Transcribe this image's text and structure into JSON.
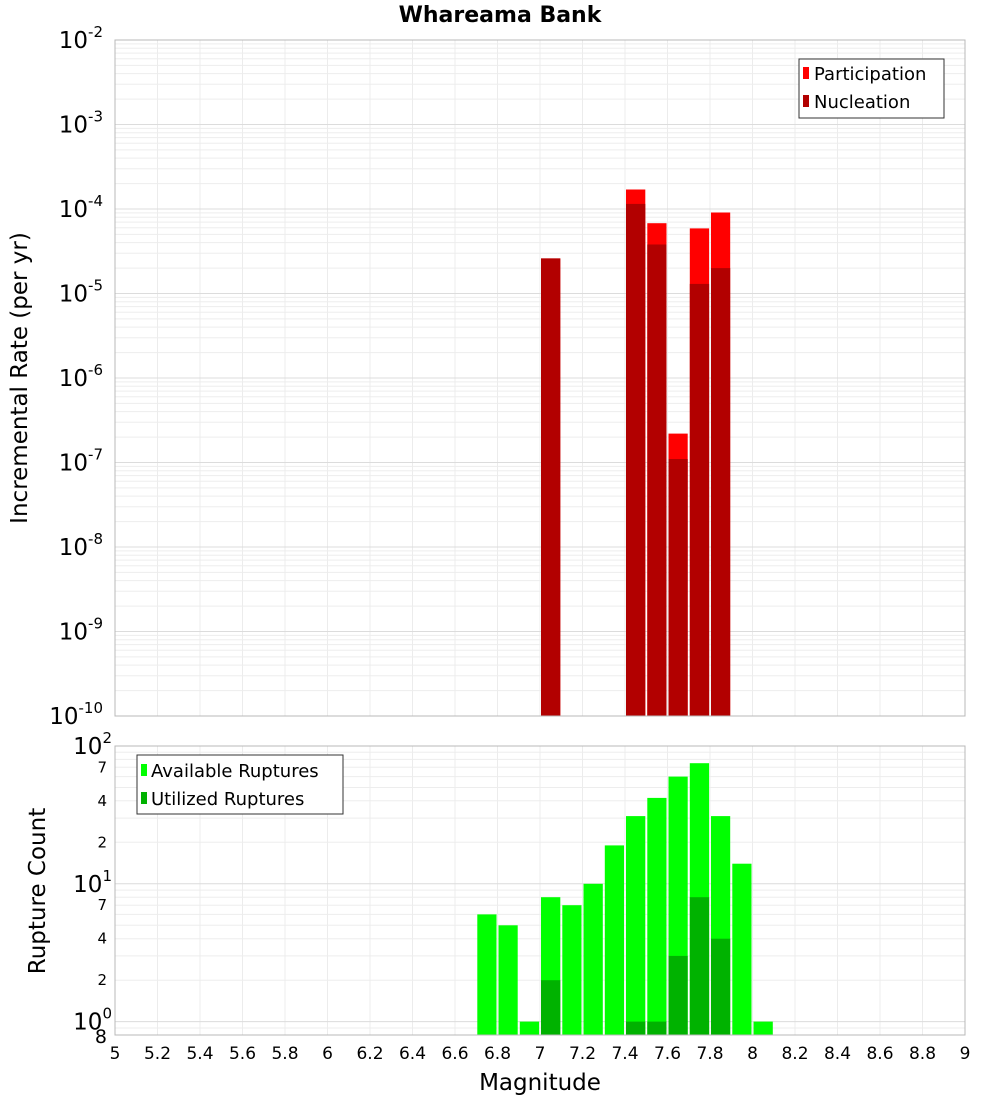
{
  "chart_data": {
    "title": "Whareama Bank",
    "xlabel": "Magnitude",
    "xlim": [
      5,
      9
    ],
    "x_ticks": [
      "5",
      "5.2",
      "5.4",
      "5.6",
      "5.8",
      "6",
      "6.2",
      "6.4",
      "6.6",
      "6.8",
      "7",
      "7.2",
      "7.4",
      "7.6",
      "7.8",
      "8",
      "8.2",
      "8.4",
      "8.6",
      "8.8",
      "9"
    ],
    "bin_width": 0.1,
    "top_panel": {
      "type": "bar",
      "scale": "log",
      "ylabel": "Incremental Rate (per yr)",
      "ylim": [
        1e-10,
        0.01
      ],
      "y_tick_labels": [
        {
          "base": "10",
          "exp": "-10"
        },
        {
          "base": "10",
          "exp": "-9"
        },
        {
          "base": "10",
          "exp": "-8"
        },
        {
          "base": "10",
          "exp": "-7"
        },
        {
          "base": "10",
          "exp": "-6"
        },
        {
          "base": "10",
          "exp": "-5"
        },
        {
          "base": "10",
          "exp": "-4"
        },
        {
          "base": "10",
          "exp": "-3"
        },
        {
          "base": "10",
          "exp": "-2"
        }
      ],
      "legend": [
        "Participation",
        "Nucleation"
      ],
      "series": [
        {
          "name": "Participation",
          "color": "#ff0000",
          "x": [
            7.05,
            7.45,
            7.55,
            7.65,
            7.75,
            7.85
          ],
          "values": [
            2.6e-05,
            0.00017,
            6.8e-05,
            2.2e-07,
            5.9e-05,
            9.1e-05
          ]
        },
        {
          "name": "Nucleation",
          "color": "#b20000",
          "x": [
            7.05,
            7.45,
            7.55,
            7.65,
            7.75,
            7.85
          ],
          "values": [
            2.6e-05,
            0.000115,
            3.8e-05,
            1.1e-07,
            1.3e-05,
            2e-05
          ]
        }
      ]
    },
    "bottom_panel": {
      "type": "bar",
      "scale": "log",
      "ylabel": "Rupture Count",
      "ylim": [
        0.8,
        100
      ],
      "y_tick_labels": [
        {
          "base": "10",
          "exp": "0",
          "value": 1
        },
        {
          "base": "10",
          "exp": "1",
          "value": 10
        },
        {
          "base": "10",
          "exp": "2",
          "value": 100
        }
      ],
      "y_minor_labels": [
        {
          "text": "8",
          "value": 0.8
        },
        {
          "text": "2",
          "value": 2
        },
        {
          "text": "4",
          "value": 4
        },
        {
          "text": "7",
          "value": 7
        },
        {
          "text": "2",
          "value": 20
        },
        {
          "text": "4",
          "value": 40
        },
        {
          "text": "7",
          "value": 70
        }
      ],
      "legend": [
        "Available Ruptures",
        "Utilized Ruptures"
      ],
      "series": [
        {
          "name": "Available Ruptures",
          "color": "#00ff00",
          "x": [
            6.75,
            6.85,
            6.95,
            7.05,
            7.15,
            7.25,
            7.35,
            7.45,
            7.55,
            7.65,
            7.75,
            7.85,
            7.95,
            8.05
          ],
          "values": [
            6,
            5,
            1,
            8,
            7,
            10,
            19,
            31,
            42,
            60,
            75,
            31,
            14,
            1
          ]
        },
        {
          "name": "Utilized Ruptures",
          "color": "#00b200",
          "x": [
            7.05,
            7.45,
            7.55,
            7.65,
            7.75,
            7.85
          ],
          "values": [
            2,
            1,
            1,
            3,
            8,
            4
          ]
        }
      ]
    }
  }
}
